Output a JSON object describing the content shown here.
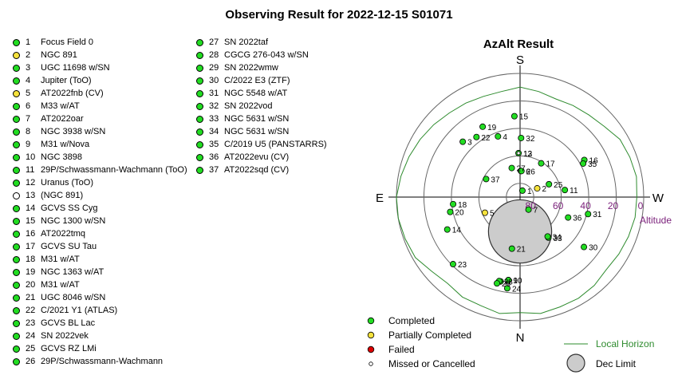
{
  "page": {
    "title": "Observing Result for 2022-12-15 S01071"
  },
  "status_colors": {
    "Completed": "#22dd22",
    "Partially Completed": "#f5e23c",
    "Failed": "#dd0000",
    "Missed or Cancelled": "#ffffff"
  },
  "targets": [
    {
      "num": "1",
      "name": "Focus Field 0",
      "status": "Completed"
    },
    {
      "num": "2",
      "name": "NGC 891",
      "status": "Partially Completed"
    },
    {
      "num": "3",
      "name": "UGC 11698 w/SN",
      "status": "Completed"
    },
    {
      "num": "4",
      "name": "Jupiter (ToO)",
      "status": "Completed"
    },
    {
      "num": "5",
      "name": "AT2022fnb (CV)",
      "status": "Partially Completed"
    },
    {
      "num": "6",
      "name": "M33 w/AT",
      "status": "Completed"
    },
    {
      "num": "7",
      "name": "AT2022oar",
      "status": "Completed"
    },
    {
      "num": "8",
      "name": "NGC 3938 w/SN",
      "status": "Completed"
    },
    {
      "num": "9",
      "name": "M31 w/Nova",
      "status": "Completed"
    },
    {
      "num": "10",
      "name": "NGC 3898",
      "status": "Completed"
    },
    {
      "num": "11",
      "name": "29P/Schwassmann-Wachmann (ToO)",
      "status": "Completed"
    },
    {
      "num": "12",
      "name": "Uranus (ToO)",
      "status": "Completed"
    },
    {
      "num": "13",
      "name": " (NGC 891)",
      "status": "Missed or Cancelled"
    },
    {
      "num": "14",
      "name": "GCVS SS Cyg",
      "status": "Completed"
    },
    {
      "num": "15",
      "name": "NGC 1300 w/SN",
      "status": "Completed"
    },
    {
      "num": "16",
      "name": "AT2022tmq",
      "status": "Completed"
    },
    {
      "num": "17",
      "name": "GCVS SU Tau",
      "status": "Completed"
    },
    {
      "num": "18",
      "name": "M31 w/AT",
      "status": "Completed"
    },
    {
      "num": "19",
      "name": "NGC 1363 w/AT",
      "status": "Completed"
    },
    {
      "num": "20",
      "name": "M31 w/AT",
      "status": "Completed"
    },
    {
      "num": "21",
      "name": "UGC 8046 w/SN",
      "status": "Completed"
    },
    {
      "num": "22",
      "name": "C/2021 Y1 (ATLAS)",
      "status": "Completed"
    },
    {
      "num": "23",
      "name": "GCVS BL Lac",
      "status": "Completed"
    },
    {
      "num": "24",
      "name": "SN 2022vek",
      "status": "Completed"
    },
    {
      "num": "25",
      "name": "GCVS RZ LMi",
      "status": "Completed"
    },
    {
      "num": "26",
      "name": "29P/Schwassmann-Wachmann",
      "status": "Completed"
    },
    {
      "num": "27",
      "name": "SN 2022taf",
      "status": "Completed"
    },
    {
      "num": "28",
      "name": "CGCG 276-043 w/SN",
      "status": "Completed"
    },
    {
      "num": "29",
      "name": "SN 2022wmw",
      "status": "Completed"
    },
    {
      "num": "30",
      "name": "C/2022 E3 (ZTF)",
      "status": "Completed"
    },
    {
      "num": "31",
      "name": "NGC 5548 w/AT",
      "status": "Completed"
    },
    {
      "num": "32",
      "name": "SN 2022vod",
      "status": "Completed"
    },
    {
      "num": "33",
      "name": "NGC 5631 w/SN",
      "status": "Completed"
    },
    {
      "num": "34",
      "name": "NGC 5631 w/SN",
      "status": "Completed"
    },
    {
      "num": "35",
      "name": "C/2019 U5 (PANSTARRS)",
      "status": "Completed"
    },
    {
      "num": "36",
      "name": "AT2022evu (CV)",
      "status": "Completed"
    },
    {
      "num": "37",
      "name": "AT2022sqd (CV)",
      "status": "Completed"
    }
  ],
  "chart_data": {
    "type": "scatter",
    "projection": "polar-altaz",
    "title": "AzAlt Result",
    "directions": {
      "north": "N",
      "south": "S",
      "east": "E",
      "west": "W"
    },
    "radial_axis": {
      "label": "Altitude",
      "ticks": [
        80,
        60,
        40,
        20,
        0
      ],
      "range": [
        90,
        0
      ]
    },
    "points": [
      {
        "label": "1",
        "az": 200,
        "alt": 85,
        "status": "Completed"
      },
      {
        "label": "2",
        "az": 243,
        "alt": 76,
        "status": "Partially Completed"
      },
      {
        "label": "3",
        "az": 134,
        "alt": 32,
        "status": "Completed"
      },
      {
        "label": "4",
        "az": 160,
        "alt": 43,
        "status": "Completed"
      },
      {
        "label": "5",
        "az": 66,
        "alt": 62,
        "status": "Partially Completed"
      },
      {
        "label": "6",
        "az": 182,
        "alt": 71,
        "status": "Completed"
      },
      {
        "label": "7",
        "az": 326,
        "alt": 79,
        "status": "Completed"
      },
      {
        "label": "8",
        "az": 13,
        "alt": 27,
        "status": "Completed"
      },
      {
        "label": "9",
        "az": 8,
        "alt": 29,
        "status": "Completed"
      },
      {
        "label": "10",
        "az": 8,
        "alt": 29,
        "status": "Completed"
      },
      {
        "label": "11",
        "az": 261,
        "alt": 57,
        "status": "Completed"
      },
      {
        "label": "12",
        "az": 178,
        "alt": 58,
        "status": "Completed"
      },
      {
        "label": "13",
        "az": 178,
        "alt": 58,
        "status": "Missed or Cancelled"
      },
      {
        "label": "14",
        "az": 66,
        "alt": 32,
        "status": "Completed"
      },
      {
        "label": "15",
        "az": 176,
        "alt": 31,
        "status": "Completed"
      },
      {
        "label": "16",
        "az": 240,
        "alt": 36,
        "status": "Completed"
      },
      {
        "label": "17",
        "az": 212,
        "alt": 61,
        "status": "Completed"
      },
      {
        "label": "18",
        "az": 84,
        "alt": 41,
        "status": "Completed"
      },
      {
        "label": "19",
        "az": 152,
        "alt": 32,
        "status": "Completed"
      },
      {
        "label": "20",
        "az": 78,
        "alt": 38,
        "status": "Completed"
      },
      {
        "label": "21",
        "az": 9,
        "alt": 52,
        "status": "Completed"
      },
      {
        "label": "22",
        "az": 144,
        "alt": 36,
        "status": "Completed"
      },
      {
        "label": "23",
        "az": 45,
        "alt": 21,
        "status": "Completed"
      },
      {
        "label": "24",
        "az": 8,
        "alt": 23,
        "status": "Completed"
      },
      {
        "label": "25",
        "az": 246,
        "alt": 67,
        "status": "Completed"
      },
      {
        "label": "26",
        "az": 183,
        "alt": 71,
        "status": "Completed"
      },
      {
        "label": "27",
        "az": 164,
        "alt": 68,
        "status": "Completed"
      },
      {
        "label": "28",
        "az": 14,
        "alt": 27,
        "status": "Completed"
      },
      {
        "label": "29",
        "az": 15,
        "alt": 25,
        "status": "Completed"
      },
      {
        "label": "30",
        "az": 308,
        "alt": 31,
        "status": "Completed"
      },
      {
        "label": "31",
        "az": 284,
        "alt": 39,
        "status": "Completed"
      },
      {
        "label": "32",
        "az": 181,
        "alt": 47,
        "status": "Completed"
      },
      {
        "label": "33",
        "az": 325,
        "alt": 54,
        "status": "Completed"
      },
      {
        "label": "34",
        "az": 325,
        "alt": 55,
        "status": "Completed"
      },
      {
        "label": "35",
        "az": 242,
        "alt": 38,
        "status": "Completed"
      },
      {
        "label": "36",
        "az": 293,
        "alt": 52,
        "status": "Completed"
      },
      {
        "label": "37",
        "az": 118,
        "alt": 62,
        "status": "Completed"
      }
    ],
    "dec_limit": {
      "az": 0,
      "alt": 65,
      "radius_deg": 23
    },
    "local_horizon": [
      [
        0,
        6
      ],
      [
        10,
        4
      ],
      [
        20,
        6
      ],
      [
        30,
        6
      ],
      [
        40,
        8
      ],
      [
        50,
        6
      ],
      [
        60,
        2
      ],
      [
        70,
        1
      ],
      [
        80,
        0
      ],
      [
        90,
        0
      ],
      [
        100,
        2
      ],
      [
        110,
        4
      ],
      [
        120,
        6
      ],
      [
        130,
        8
      ],
      [
        140,
        10
      ],
      [
        150,
        11
      ],
      [
        160,
        12
      ],
      [
        170,
        12
      ],
      [
        180,
        10
      ],
      [
        190,
        12
      ],
      [
        200,
        14
      ],
      [
        210,
        13
      ],
      [
        220,
        12
      ],
      [
        230,
        10
      ],
      [
        240,
        6
      ],
      [
        250,
        5
      ],
      [
        260,
        4
      ],
      [
        270,
        5
      ],
      [
        280,
        5
      ],
      [
        290,
        6
      ],
      [
        300,
        7
      ],
      [
        310,
        8
      ],
      [
        320,
        6
      ],
      [
        330,
        5
      ],
      [
        340,
        5
      ],
      [
        350,
        4
      ]
    ],
    "legend": {
      "status_items": [
        "Completed",
        "Partially Completed",
        "Failed",
        "Missed or Cancelled"
      ],
      "horizon_label": "Local Horizon",
      "dec_label": "Dec Limit"
    }
  }
}
